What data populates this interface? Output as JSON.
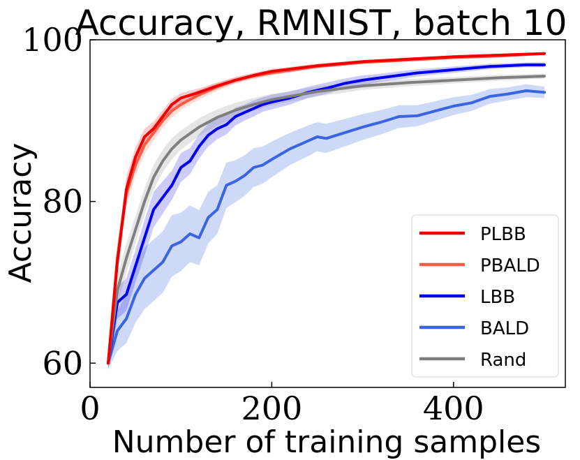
{
  "chart_data": {
    "type": "line",
    "title": "Accuracy, RMNIST, batch 10",
    "xlabel": "Number of training samples",
    "ylabel": "Accuracy",
    "xlim": [
      0,
      500
    ],
    "ylim": [
      57,
      100
    ],
    "xticks": [
      0,
      200,
      400
    ],
    "yticks": [
      60,
      80,
      100
    ],
    "xtick_labels": [
      "0",
      "200",
      "400"
    ],
    "ytick_labels": [
      "60",
      "80",
      "100"
    ],
    "grid": false,
    "legend_position": "lower-right",
    "series": [
      {
        "name": "PLBB",
        "color": "#ee0000",
        "band_opacity": 0.2,
        "x": [
          20,
          30,
          40,
          50,
          60,
          70,
          80,
          90,
          100,
          120,
          140,
          160,
          180,
          200,
          250,
          300,
          350,
          400,
          450,
          500
        ],
        "y": [
          60,
          72.5,
          81.5,
          85.5,
          88,
          89,
          90.5,
          92,
          92.8,
          93.5,
          94.3,
          95,
          95.6,
          96.1,
          96.8,
          97.3,
          97.6,
          97.9,
          98.1,
          98.3
        ],
        "spread": [
          0.6,
          1.8,
          1.6,
          1.2,
          1,
          0.9,
          0.8,
          0.7,
          0.6,
          0.5,
          0.4,
          0.35,
          0.3,
          0.3,
          0.25,
          0.2,
          0.2,
          0.15,
          0.15,
          0.15
        ]
      },
      {
        "name": "PBALD",
        "color": "#ff5a45",
        "band_opacity": 0.2,
        "x": [
          20,
          30,
          40,
          50,
          60,
          70,
          80,
          90,
          100,
          120,
          140,
          160,
          180,
          200,
          250,
          300,
          350,
          400,
          450,
          500
        ],
        "y": [
          60,
          73,
          81,
          84.5,
          87,
          88.5,
          90,
          91.2,
          92,
          93.2,
          94.2,
          95,
          95.5,
          95.9,
          96.7,
          97.2,
          97.5,
          97.8,
          98,
          98.3
        ],
        "spread": [
          0.6,
          1.8,
          1.6,
          1.3,
          1.1,
          1,
          0.9,
          0.8,
          0.7,
          0.6,
          0.5,
          0.4,
          0.35,
          0.3,
          0.25,
          0.2,
          0.2,
          0.15,
          0.15,
          0.15
        ]
      },
      {
        "name": "LBB",
        "color": "#0000ee",
        "band_opacity": 0.2,
        "x": [
          20,
          30,
          40,
          50,
          60,
          70,
          80,
          90,
          100,
          110,
          120,
          130,
          140,
          150,
          160,
          170,
          180,
          190,
          200,
          220,
          240,
          260,
          280,
          300,
          320,
          340,
          360,
          380,
          400,
          420,
          440,
          460,
          480,
          500
        ],
        "y": [
          60,
          67.5,
          68.5,
          72,
          75.5,
          79,
          80.5,
          82,
          84.2,
          85,
          86.8,
          88.2,
          89,
          89.5,
          90.5,
          91,
          91.5,
          92,
          92.3,
          92.8,
          93.5,
          94,
          94.6,
          95,
          95.3,
          95.6,
          95.9,
          96.1,
          96.3,
          96.5,
          96.7,
          96.8,
          96.9,
          96.9
        ],
        "spread": [
          0.6,
          2,
          2,
          2,
          2.2,
          2.2,
          2,
          1.8,
          1.8,
          1.6,
          1.5,
          1.4,
          1.3,
          1.2,
          1.1,
          1,
          1,
          0.9,
          0.9,
          0.8,
          0.7,
          0.7,
          0.6,
          0.6,
          0.5,
          0.5,
          0.45,
          0.4,
          0.4,
          0.35,
          0.35,
          0.3,
          0.3,
          0.3
        ]
      },
      {
        "name": "BALD",
        "color": "#3a65e0",
        "band_opacity": 0.25,
        "x": [
          20,
          30,
          40,
          50,
          60,
          70,
          80,
          90,
          100,
          110,
          120,
          130,
          140,
          150,
          160,
          170,
          180,
          190,
          200,
          220,
          240,
          250,
          260,
          280,
          300,
          320,
          340,
          360,
          380,
          400,
          420,
          440,
          460,
          480,
          500
        ],
        "y": [
          60,
          64,
          65.5,
          68.5,
          70.5,
          71.5,
          72.5,
          74.5,
          75,
          76,
          75.5,
          78,
          79,
          82,
          82.5,
          83.2,
          84.2,
          84.5,
          85.2,
          86.5,
          87.5,
          88,
          87.8,
          88.5,
          89.2,
          89.8,
          90.5,
          90.6,
          91.2,
          91.8,
          92.2,
          93,
          93.3,
          93.7,
          93.5
        ],
        "spread": [
          0.8,
          2.5,
          3,
          3.5,
          3.8,
          3.8,
          3.8,
          3.8,
          3.6,
          3.5,
          3.4,
          3.2,
          3,
          2.8,
          2.6,
          2.5,
          2.4,
          2.3,
          2.2,
          2,
          1.9,
          1.8,
          1.8,
          1.7,
          1.6,
          1.5,
          1.4,
          1.3,
          1.2,
          1.1,
          1,
          0.9,
          0.8,
          0.8,
          0.7
        ]
      },
      {
        "name": "Rand",
        "color": "#7f7f7f",
        "band_opacity": 0.2,
        "x": [
          20,
          30,
          40,
          50,
          60,
          70,
          80,
          90,
          100,
          120,
          140,
          160,
          180,
          200,
          250,
          300,
          350,
          400,
          450,
          500
        ],
        "y": [
          60,
          69,
          73,
          76.5,
          80,
          83,
          85,
          86.5,
          87.6,
          89.2,
          90.4,
          91.3,
          92,
          92.6,
          93.6,
          94.3,
          94.7,
          95,
          95.3,
          95.5
        ],
        "spread": [
          0.6,
          1.8,
          1.8,
          1.7,
          1.6,
          1.5,
          1.4,
          1.3,
          1.2,
          1.1,
          1,
          0.9,
          0.8,
          0.7,
          0.6,
          0.5,
          0.45,
          0.4,
          0.35,
          0.3
        ]
      }
    ]
  }
}
